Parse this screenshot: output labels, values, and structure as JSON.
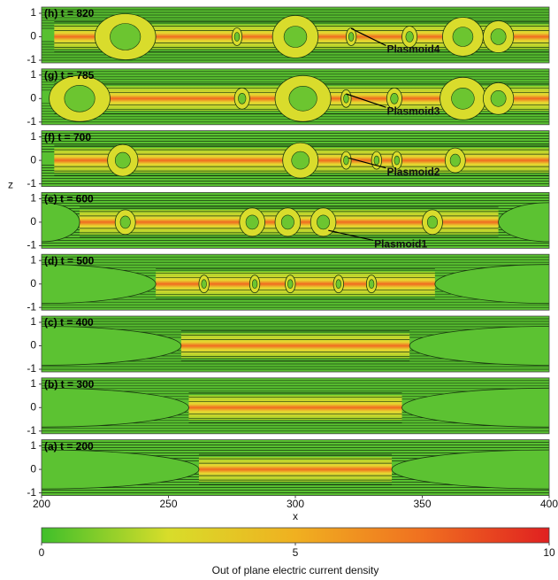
{
  "chart_data": [
    {
      "type": "heatmap",
      "title": "(h) t = 820",
      "xlim": [
        200,
        400
      ],
      "ylim": [
        -1,
        1
      ],
      "yticks": [
        -1,
        0,
        1
      ],
      "annotations": [
        "Plasmoid4"
      ]
    },
    {
      "type": "heatmap",
      "title": "(g) t = 785",
      "xlim": [
        200,
        400
      ],
      "ylim": [
        -1,
        1
      ],
      "yticks": [
        -1,
        0,
        1
      ],
      "annotations": [
        "Plasmoid3"
      ]
    },
    {
      "type": "heatmap",
      "title": "(f) t = 700",
      "xlim": [
        200,
        400
      ],
      "ylim": [
        -1,
        1
      ],
      "yticks": [
        -1,
        0,
        1
      ],
      "annotations": [
        "Plasmoid2"
      ]
    },
    {
      "type": "heatmap",
      "title": "(e) t = 600",
      "xlim": [
        200,
        400
      ],
      "ylim": [
        -1,
        1
      ],
      "yticks": [
        -1,
        0,
        1
      ],
      "ylabel": "z",
      "annotations": [
        "Plasmoid1"
      ]
    },
    {
      "type": "heatmap",
      "title": "(d) t = 500",
      "xlim": [
        200,
        400
      ],
      "ylim": [
        -1,
        1
      ],
      "yticks": [
        -1,
        0,
        1
      ]
    },
    {
      "type": "heatmap",
      "title": "(c) t = 400",
      "xlim": [
        200,
        400
      ],
      "ylim": [
        -1,
        1
      ],
      "yticks": [
        -1,
        0,
        1
      ]
    },
    {
      "type": "heatmap",
      "title": "(b) t = 300",
      "xlim": [
        200,
        400
      ],
      "ylim": [
        -1,
        1
      ],
      "yticks": [
        -1,
        0,
        1
      ]
    },
    {
      "type": "heatmap",
      "title": "(a) t = 200",
      "xlim": [
        200,
        400
      ],
      "ylim": [
        -1,
        1
      ],
      "yticks": [
        -1,
        0,
        1
      ],
      "xticks": [
        200,
        250,
        300,
        350,
        400
      ],
      "xlabel": "x"
    },
    {
      "type": "colorbar",
      "label": "Out of plane electric current density",
      "lim": [
        0,
        10
      ],
      "ticks": [
        0,
        5,
        10
      ],
      "colors": [
        "#3fbf2a",
        "#d8dd2a",
        "#f0b020",
        "#f07020",
        "#e02020"
      ]
    }
  ]
}
